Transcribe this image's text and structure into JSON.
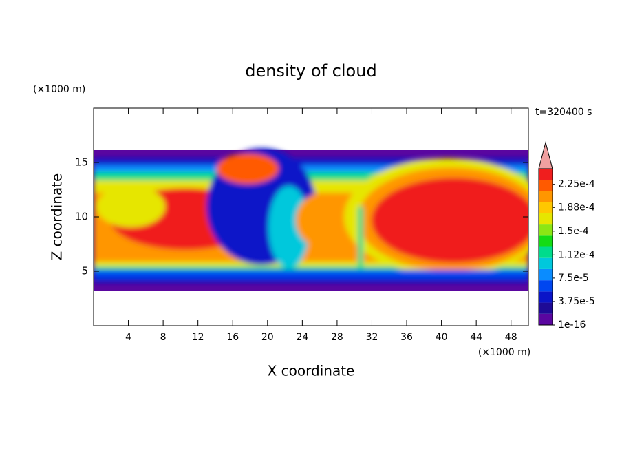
{
  "chart_data": {
    "type": "contour",
    "title": "density of cloud",
    "x_label": "X coordinate",
    "y_label": "Z coordinate",
    "x_unit": "(×1000 m)",
    "y_unit": "(×1000 m)",
    "time_label": "t=320400 s",
    "xlim": [
      0,
      50
    ],
    "xticks": [
      4,
      8,
      12,
      16,
      20,
      24,
      28,
      32,
      36,
      40,
      44,
      48
    ],
    "ylim": [
      0,
      20
    ],
    "yticks": [
      5,
      10,
      15
    ],
    "colorbar": {
      "clim": [
        1e-16,
        0.00025
      ],
      "ticks": [
        1e-16,
        {
          "value": 3.75e-05,
          "label": "3.75e-5"
        },
        {
          "value": 7.5e-05,
          "label": "7.5e-5"
        },
        {
          "value": 0.000112,
          "label": "1.12e-4"
        },
        {
          "value": 0.00015,
          "label": "1.5e-4"
        },
        {
          "value": 0.000188,
          "label": "1.88e-4"
        },
        {
          "value": 0.000225,
          "label": "2.25e-4"
        }
      ],
      "colors": [
        "#5a06a0",
        "#1e0a96",
        "#0a14c8",
        "#0046f0",
        "#0a8cff",
        "#00c8dc",
        "#00dc8c",
        "#14dc14",
        "#8ce614",
        "#e6e600",
        "#ffc800",
        "#ff9600",
        "#ff5a00",
        "#f01e1e"
      ],
      "extend_color": "#f0a0a0"
    }
  }
}
